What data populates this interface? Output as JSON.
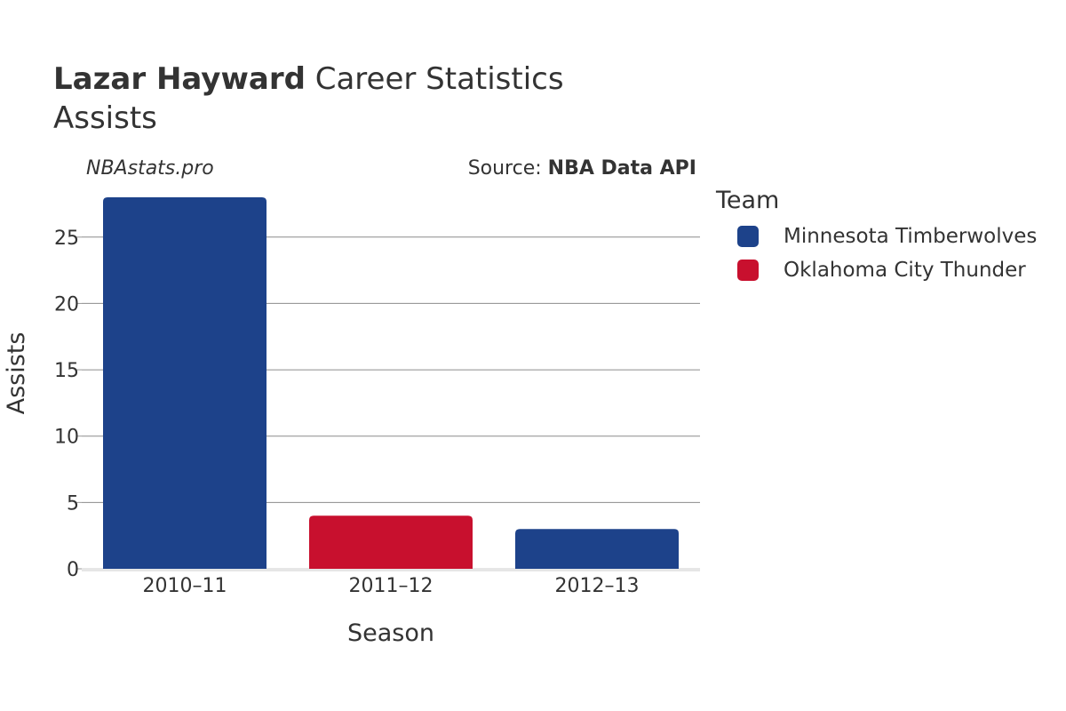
{
  "header": {
    "title_bold": "Lazar Hayward",
    "title_rest": " Career Statistics",
    "subtitle": "Assists",
    "site": "NBAstats.pro",
    "source_prefix": "Source: ",
    "source_bold": "NBA Data API"
  },
  "legend": {
    "title": "Team",
    "items": [
      {
        "label": "Minnesota Timberwolves",
        "color": "#1d428a"
      },
      {
        "label": "Oklahoma City Thunder",
        "color": "#c8102e"
      }
    ]
  },
  "chart_data": {
    "type": "bar",
    "title": "Lazar Hayward Career Statistics",
    "subtitle": "Assists",
    "xlabel": "Season",
    "ylabel": "Assists",
    "categories": [
      "2010–11",
      "2011–12",
      "2012–13"
    ],
    "values": [
      28,
      4,
      3
    ],
    "bar_teams": [
      "Minnesota Timberwolves",
      "Oklahoma City Thunder",
      "Minnesota Timberwolves"
    ],
    "bar_colors": [
      "#1d428a",
      "#c8102e",
      "#1d428a"
    ],
    "ylim": [
      0,
      28
    ],
    "yticks": [
      0,
      5,
      10,
      15,
      20,
      25
    ],
    "grid": true,
    "legend_position": "right"
  }
}
